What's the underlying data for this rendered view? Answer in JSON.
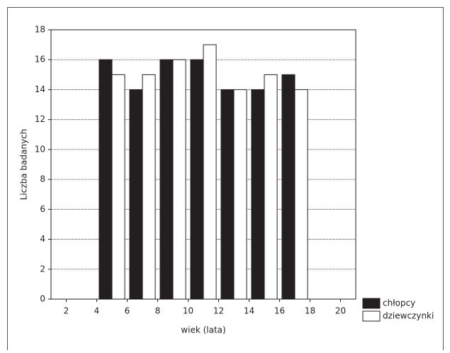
{
  "chart_data": {
    "type": "bar",
    "x_label": "wiek (lata)",
    "y_label": "Liczba badanych",
    "x": [
      5,
      7,
      9,
      11,
      13,
      15,
      17
    ],
    "series": [
      {
        "name": "chłopcy",
        "color": "#231f20",
        "values": [
          16,
          14,
          16,
          16,
          14,
          14,
          15
        ]
      },
      {
        "name": "dziewczynki",
        "color": "#ffffff",
        "values": [
          15,
          15,
          16,
          17,
          14,
          15,
          14
        ]
      }
    ],
    "xlim": [
      1,
      21
    ],
    "xticks": [
      2,
      4,
      6,
      8,
      10,
      12,
      14,
      16,
      18,
      20
    ],
    "ylim": [
      0,
      18
    ],
    "yticks": [
      0,
      2,
      4,
      6,
      8,
      10,
      12,
      14,
      16,
      18
    ],
    "grid": true
  }
}
